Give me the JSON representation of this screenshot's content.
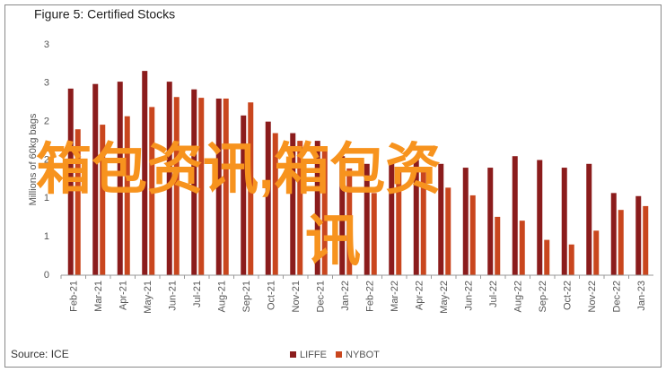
{
  "chart_data": {
    "type": "bar",
    "title": "Figure 5: Certified Stocks",
    "y_label": "Millions of 60kg bags",
    "source": "Source: ICE",
    "watermark": [
      "箱包资讯,箱包资",
      "讯"
    ],
    "categories": [
      "Feb-21",
      "Mar-21",
      "Apr-21",
      "May-21",
      "Jun-21",
      "Jul-21",
      "Aug-21",
      "Sep-21",
      "Oct-21",
      "Nov-21",
      "Dec-21",
      "Jan-22",
      "Feb-22",
      "Mar-22",
      "Apr-22",
      "May-22",
      "Jun-22",
      "Jul-22",
      "Aug-22",
      "Sep-22",
      "Oct-22",
      "Nov-22",
      "Dec-22",
      "Jan-23"
    ],
    "series": [
      {
        "name": "LIFFE",
        "color": "#8b1c1c",
        "values": [
          2.43,
          2.49,
          2.52,
          2.66,
          2.52,
          2.42,
          2.3,
          2.08,
          2.0,
          1.85,
          1.75,
          1.55,
          1.45,
          1.5,
          1.5,
          1.45,
          1.4,
          1.4,
          1.55,
          1.5,
          1.4,
          1.45,
          1.07,
          1.03
        ]
      },
      {
        "name": "NYBOT",
        "color": "#c9461e",
        "values": [
          1.9,
          1.96,
          2.07,
          2.19,
          2.32,
          2.31,
          2.3,
          2.25,
          1.85,
          1.75,
          1.66,
          1.39,
          1.07,
          1.35,
          1.4,
          1.14,
          1.04,
          0.76,
          0.71,
          0.46,
          0.4,
          0.58,
          0.85,
          0.9
        ]
      }
    ],
    "ylim": [
      0,
      3
    ],
    "yticks": [
      0,
      {
        "value": 0.5,
        "label": "1"
      },
      1,
      {
        "value": 1.5,
        "label": "2"
      },
      2,
      {
        "value": 2.5,
        "label": "3"
      },
      3
    ],
    "grid": false
  }
}
